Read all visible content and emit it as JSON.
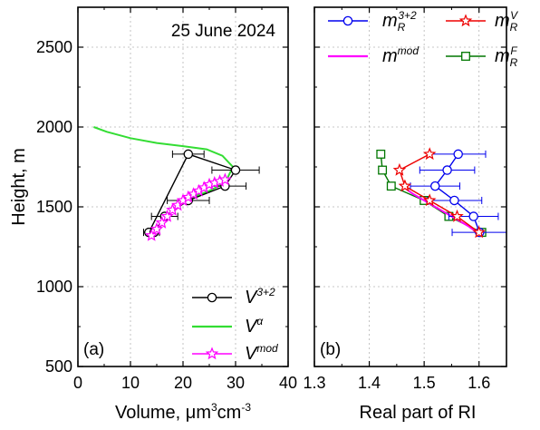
{
  "chart_data": [
    {
      "type": "line",
      "panel_label": "(a)",
      "annotation": "25 June 2024",
      "xlabel_parts": [
        "Volume, ",
        "μm",
        "3",
        "cm",
        "-3"
      ],
      "ylabel": "Height, m",
      "xlim": [
        0,
        40
      ],
      "ylim": [
        500,
        2750
      ],
      "x_ticks": [
        0,
        10,
        20,
        30,
        40
      ],
      "y_ticks": [
        500,
        1000,
        1500,
        2000,
        2500
      ],
      "grid": true,
      "legend_position": "bottom-right",
      "series": [
        {
          "name": "V3+2",
          "name_base": "V",
          "name_sup": "3+2",
          "color": "#000000",
          "marker": "circle",
          "x": [
            13.5,
            21.0,
            30.0,
            28.0,
            21.0,
            16.5,
            14.5
          ],
          "y": [
            1340,
            1830,
            1730,
            1630,
            1540,
            1440,
            1340
          ],
          "xerr": [
            1.0,
            3.0,
            4.5,
            4.0,
            4.0,
            2.5,
            1.0
          ]
        },
        {
          "name": "Vα",
          "name_base": "V",
          "name_sup": "α",
          "color": "#33dd33",
          "marker": "none",
          "x": [
            3.0,
            5.5,
            10.0,
            15.0,
            20.0,
            24.5,
            27.5,
            29.5,
            28.0,
            25.0,
            21.0,
            18.0,
            16.0,
            15.0
          ],
          "y": [
            2000,
            1970,
            1930,
            1900,
            1880,
            1860,
            1820,
            1750,
            1650,
            1600,
            1550,
            1480,
            1400,
            1320
          ]
        },
        {
          "name": "Vmod",
          "name_base": "V",
          "name_sup": "mod",
          "color": "#ff00ff",
          "marker": "star",
          "x": [
            14.0,
            15.0,
            16.0,
            17.0,
            18.0,
            19.0,
            20.0,
            21.0,
            22.0,
            23.0,
            24.0,
            25.0,
            26.0,
            27.0,
            28.0
          ],
          "y": [
            1320,
            1360,
            1400,
            1440,
            1480,
            1510,
            1540,
            1560,
            1580,
            1600,
            1620,
            1640,
            1650,
            1660,
            1670
          ]
        }
      ]
    },
    {
      "type": "line",
      "panel_label": "(b)",
      "xlabel": "Real part of RI",
      "xlim": [
        1.3,
        1.65
      ],
      "ylim": [
        500,
        2750
      ],
      "x_ticks": [
        1.3,
        1.4,
        1.5,
        1.6
      ],
      "x_tick_labels": [
        "1.3",
        "1.4",
        "1.5",
        "1.6"
      ],
      "grid": true,
      "legend_position": "top",
      "series": [
        {
          "name": "mR3+2",
          "name_base": "m",
          "name_sub": "R",
          "name_sup": "3+2",
          "color": "#0000ee",
          "marker": "circle",
          "x": [
            1.601,
            1.59,
            1.555,
            1.52,
            1.542,
            1.562
          ],
          "y": [
            1340,
            1440,
            1540,
            1630,
            1730,
            1830
          ],
          "xerr": [
            0.05,
            0.045,
            0.05,
            0.045,
            0.05,
            0.05
          ]
        },
        {
          "name": "mRV",
          "name_base": "m",
          "name_sub": "R",
          "name_sup": "V",
          "color": "#ee0000",
          "marker": "star",
          "x": [
            1.6,
            1.56,
            1.51,
            1.465,
            1.455,
            1.51
          ],
          "y": [
            1340,
            1440,
            1540,
            1630,
            1730,
            1830
          ]
        },
        {
          "name": "mmod",
          "name_base": "m",
          "name_sup": "mod",
          "color": "#ff00ff",
          "marker": "none",
          "x": [
            1.6,
            1.58,
            1.555,
            1.53,
            1.505,
            1.48,
            1.46
          ],
          "y": [
            1330,
            1380,
            1430,
            1480,
            1530,
            1580,
            1630
          ]
        },
        {
          "name": "mRF",
          "name_base": "m",
          "name_sub": "R",
          "name_sup": "F",
          "color": "#007700",
          "marker": "square",
          "x": [
            1.605,
            1.545,
            1.5,
            1.44,
            1.424,
            1.421
          ],
          "y": [
            1340,
            1440,
            1540,
            1630,
            1730,
            1830
          ]
        }
      ]
    }
  ]
}
